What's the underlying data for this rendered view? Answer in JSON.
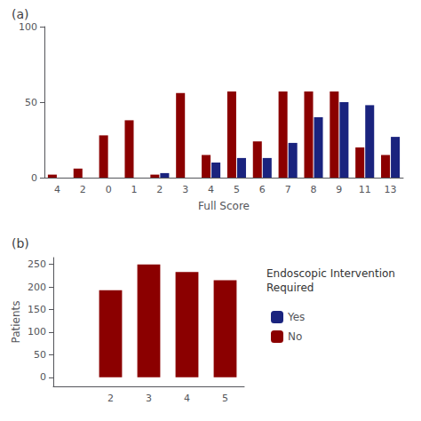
{
  "chart_data": [
    {
      "type": "bar",
      "title": "(a)",
      "x_label": "Full Score",
      "categories": [
        "4",
        "2",
        "0",
        "1",
        "2",
        "3",
        "4",
        "5",
        "6",
        "7",
        "8",
        "9",
        "11",
        "13"
      ],
      "series": [
        {
          "name": "No",
          "color": "#8b0000",
          "values": [
            2,
            6,
            28,
            38,
            2,
            56,
            15,
            57,
            24,
            57,
            57,
            57,
            20,
            15
          ]
        },
        {
          "name": "Yes",
          "color": "#1a237e",
          "values": [
            0,
            0,
            0,
            0,
            3,
            0,
            10,
            13,
            13,
            23,
            40,
            50,
            48,
            27
          ]
        }
      ],
      "ylim": [
        0,
        100
      ],
      "yticks": [
        0,
        50,
        100
      ],
      "grid": false
    },
    {
      "type": "bar",
      "title": "(b)",
      "y_label": "Patients",
      "categories": [
        null,
        "2",
        "3",
        "4",
        "5"
      ],
      "series": [
        {
          "name": "No",
          "color": "#8b0000",
          "values": [
            0,
            193,
            250,
            233,
            215
          ]
        },
        {
          "name": "Yes",
          "color": "#1a237e",
          "values": [
            0,
            0,
            0,
            0,
            0
          ]
        }
      ],
      "ylim": [
        -20,
        265
      ],
      "yticks": [
        0,
        50,
        100,
        150,
        200,
        250
      ],
      "grid": false,
      "stacked": false,
      "legend": "lower right",
      "annotations": [
        "Endoscopic Intervention\nRequired"
      ]
    }
  ]
}
